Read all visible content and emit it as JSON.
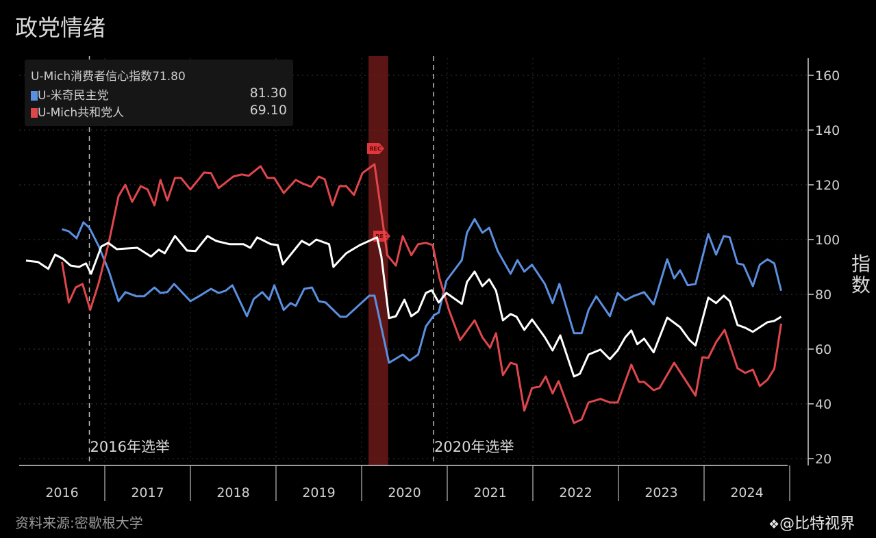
{
  "title": "政党情绪",
  "source": "资料来源:密歇根大学",
  "watermark": "@比特视界",
  "legend": {
    "header": "U-Mich消费者信心指数71.80",
    "items": [
      {
        "label": "U-米奇民主党",
        "value": "81.30",
        "color": "#5b8fe0"
      },
      {
        "label": "U-Mich共和党人",
        "value": "69.10",
        "color": "#e0474c"
      }
    ]
  },
  "chart_data": {
    "type": "line",
    "title": "政党情绪",
    "xlabel": "",
    "ylabel": "指数",
    "ylim": [
      20,
      165
    ],
    "xlim": [
      2016.0,
      2025.0
    ],
    "yticks": [
      20,
      40,
      60,
      80,
      100,
      120,
      140,
      160
    ],
    "xtick_labels": [
      "2016",
      "2017",
      "2018",
      "2019",
      "2020",
      "2021",
      "2022",
      "2023",
      "2024"
    ],
    "grid": true,
    "legend_position": "top-left",
    "annotations": [
      {
        "text": "2016年选举",
        "x": 2016.82
      },
      {
        "text": "2020年选举",
        "x": 2020.84
      }
    ],
    "recession": {
      "label": "REC",
      "start": 2020.08,
      "end": 2020.31
    },
    "series": [
      {
        "name": "U-Mich消费者信心指数",
        "color": "#ffffff",
        "x": [
          2016.08,
          2016.22,
          2016.34,
          2016.42,
          2016.51,
          2016.6,
          2016.7,
          2016.78,
          2016.84,
          2016.96,
          2017.04,
          2017.14,
          2017.38,
          2017.54,
          2017.63,
          2017.7,
          2017.82,
          2017.96,
          2018.06,
          2018.2,
          2018.3,
          2018.46,
          2018.62,
          2018.7,
          2018.78,
          2018.94,
          2019.02,
          2019.08,
          2019.3,
          2019.39,
          2019.47,
          2019.62,
          2019.67,
          2019.82,
          2019.98,
          2020.18,
          2020.23,
          2020.32,
          2020.4,
          2020.5,
          2020.58,
          2020.66,
          2020.75,
          2020.82,
          2020.9,
          2020.99,
          2021.17,
          2021.23,
          2021.32,
          2021.41,
          2021.49,
          2021.57,
          2021.65,
          2021.74,
          2021.81,
          2021.9,
          2021.99,
          2022.14,
          2022.23,
          2022.32,
          2022.48,
          2022.55,
          2022.65,
          2022.79,
          2022.9,
          2022.99,
          2023.08,
          2023.15,
          2023.22,
          2023.3,
          2023.41,
          2023.57,
          2023.72,
          2023.83,
          2023.9,
          2024.05,
          2024.14,
          2024.23,
          2024.3,
          2024.39,
          2024.48,
          2024.57,
          2024.74,
          2024.82,
          2024.9
        ],
        "values": [
          92.3,
          91.8,
          89.3,
          94.5,
          93,
          90.5,
          90,
          91.3,
          87.5,
          97.5,
          98.8,
          96.5,
          97,
          93.8,
          96.3,
          95,
          101.3,
          96,
          95.8,
          101.3,
          99.5,
          98.3,
          98.3,
          97,
          100.8,
          98.3,
          98,
          91,
          99.5,
          98,
          100,
          98.3,
          90,
          95,
          98,
          100.8,
          93.8,
          71.3,
          72,
          78,
          72,
          73.8,
          80.5,
          81.5,
          77,
          80.5,
          76.5,
          84.5,
          88.3,
          83,
          85.5,
          81.3,
          70.5,
          72.8,
          71.8,
          67,
          70.8,
          64.3,
          59.5,
          65,
          50,
          51,
          58,
          59.8,
          56.3,
          59.5,
          64.3,
          66.8,
          61.8,
          63.8,
          58.8,
          71.5,
          68,
          63.3,
          61.3,
          78.8,
          76.8,
          79.5,
          77.5,
          68.8,
          67.8,
          66.3,
          69.8,
          70.3,
          71.8
        ]
      },
      {
        "name": "U-米奇民主党",
        "color": "#5b8fe0",
        "x": [
          2016.5,
          2016.58,
          2016.67,
          2016.75,
          2016.82,
          2016.93,
          2017.05,
          2017.16,
          2017.24,
          2017.37,
          2017.46,
          2017.58,
          2017.65,
          2017.73,
          2017.81,
          2018.0,
          2018.1,
          2018.24,
          2018.33,
          2018.41,
          2018.49,
          2018.66,
          2018.74,
          2018.84,
          2018.92,
          2018.98,
          2019.09,
          2019.17,
          2019.23,
          2019.33,
          2019.42,
          2019.5,
          2019.58,
          2019.75,
          2019.82,
          2020.09,
          2020.15,
          2020.32,
          2020.48,
          2020.56,
          2020.66,
          2020.75,
          2020.85,
          2020.9,
          2020.99,
          2021.17,
          2021.23,
          2021.32,
          2021.41,
          2021.49,
          2021.59,
          2021.74,
          2021.82,
          2021.9,
          2021.99,
          2022.14,
          2022.23,
          2022.31,
          2022.48,
          2022.57,
          2022.65,
          2022.74,
          2022.9,
          2022.99,
          2023.08,
          2023.17,
          2023.3,
          2023.41,
          2023.57,
          2023.65,
          2023.72,
          2023.81,
          2023.9,
          2024.05,
          2024.14,
          2024.23,
          2024.3,
          2024.39,
          2024.46,
          2024.57,
          2024.65,
          2024.74,
          2024.82,
          2024.9
        ],
        "values": [
          103.8,
          103,
          100.5,
          106.3,
          104.3,
          97.5,
          88.3,
          77.5,
          80.8,
          79.3,
          79.3,
          82.5,
          80.5,
          80.8,
          83.8,
          77.5,
          79.3,
          82,
          80.5,
          81.3,
          83.3,
          72,
          78.3,
          80.8,
          78,
          83.3,
          74.3,
          76.8,
          75.8,
          82,
          82.5,
          77.5,
          77,
          71.8,
          71.8,
          79.5,
          79.5,
          55,
          58,
          55.8,
          58,
          68.3,
          72.5,
          73.3,
          85,
          92.5,
          102.5,
          107.5,
          102.5,
          104.3,
          95.8,
          87.5,
          92.5,
          88.3,
          90.8,
          83.8,
          76.8,
          83.8,
          65.8,
          65.8,
          74.3,
          79.3,
          72,
          80.5,
          77.8,
          79.3,
          80.8,
          76.3,
          92.8,
          85.8,
          88.8,
          83.3,
          83.8,
          102,
          94.5,
          101.3,
          100.8,
          91.3,
          90.8,
          83,
          90.8,
          92.8,
          91.3,
          81.3
        ]
      },
      {
        "name": "U-Mich共和党人",
        "color": "#e0474c",
        "x": [
          2016.5,
          2016.58,
          2016.66,
          2016.74,
          2016.83,
          2016.93,
          2017.05,
          2017.16,
          2017.24,
          2017.32,
          2017.42,
          2017.5,
          2017.58,
          2017.65,
          2017.73,
          2017.82,
          2017.89,
          2018.0,
          2018.16,
          2018.24,
          2018.33,
          2018.5,
          2018.6,
          2018.68,
          2018.82,
          2018.9,
          2018.98,
          2019.09,
          2019.23,
          2019.31,
          2019.41,
          2019.5,
          2019.57,
          2019.66,
          2019.74,
          2019.82,
          2019.91,
          2020.01,
          2020.15,
          2020.3,
          2020.4,
          2020.48,
          2020.58,
          2020.66,
          2020.75,
          2020.83,
          2020.91,
          2021.02,
          2021.15,
          2021.32,
          2021.41,
          2021.5,
          2021.57,
          2021.65,
          2021.74,
          2021.81,
          2021.9,
          2021.99,
          2022.08,
          2022.15,
          2022.23,
          2022.3,
          2022.48,
          2022.57,
          2022.65,
          2022.79,
          2022.9,
          2022.99,
          2023.15,
          2023.24,
          2023.3,
          2023.41,
          2023.48,
          2023.65,
          2023.9,
          2023.98,
          2024.05,
          2024.14,
          2024.24,
          2024.39,
          2024.48,
          2024.57,
          2024.65,
          2024.74,
          2024.82,
          2024.9
        ],
        "values": [
          91.8,
          77,
          82.5,
          83.8,
          74.3,
          84.3,
          99.3,
          115.8,
          120,
          113.8,
          119.5,
          118.3,
          112.5,
          121.8,
          114.3,
          122.5,
          122.5,
          118.3,
          124.5,
          124.3,
          118.8,
          123,
          123.8,
          123.3,
          126.8,
          122.5,
          122.5,
          117,
          121.8,
          120.5,
          119.3,
          123,
          122,
          112.5,
          119.5,
          119.5,
          116.3,
          124.3,
          127.5,
          94.3,
          90.5,
          101.3,
          94.3,
          98.3,
          98.8,
          98,
          85.8,
          74.3,
          63.3,
          70.5,
          64.3,
          60.5,
          65.8,
          50.5,
          55,
          54.3,
          37.5,
          45.8,
          46.3,
          50,
          43.8,
          48.3,
          33,
          34.3,
          40.5,
          41.8,
          40.5,
          40.5,
          54.3,
          48,
          48,
          45,
          45.8,
          55,
          43,
          57,
          56.8,
          62.5,
          67,
          53,
          51.3,
          52.5,
          46.5,
          48.8,
          52.8,
          69.3
        ]
      }
    ]
  }
}
